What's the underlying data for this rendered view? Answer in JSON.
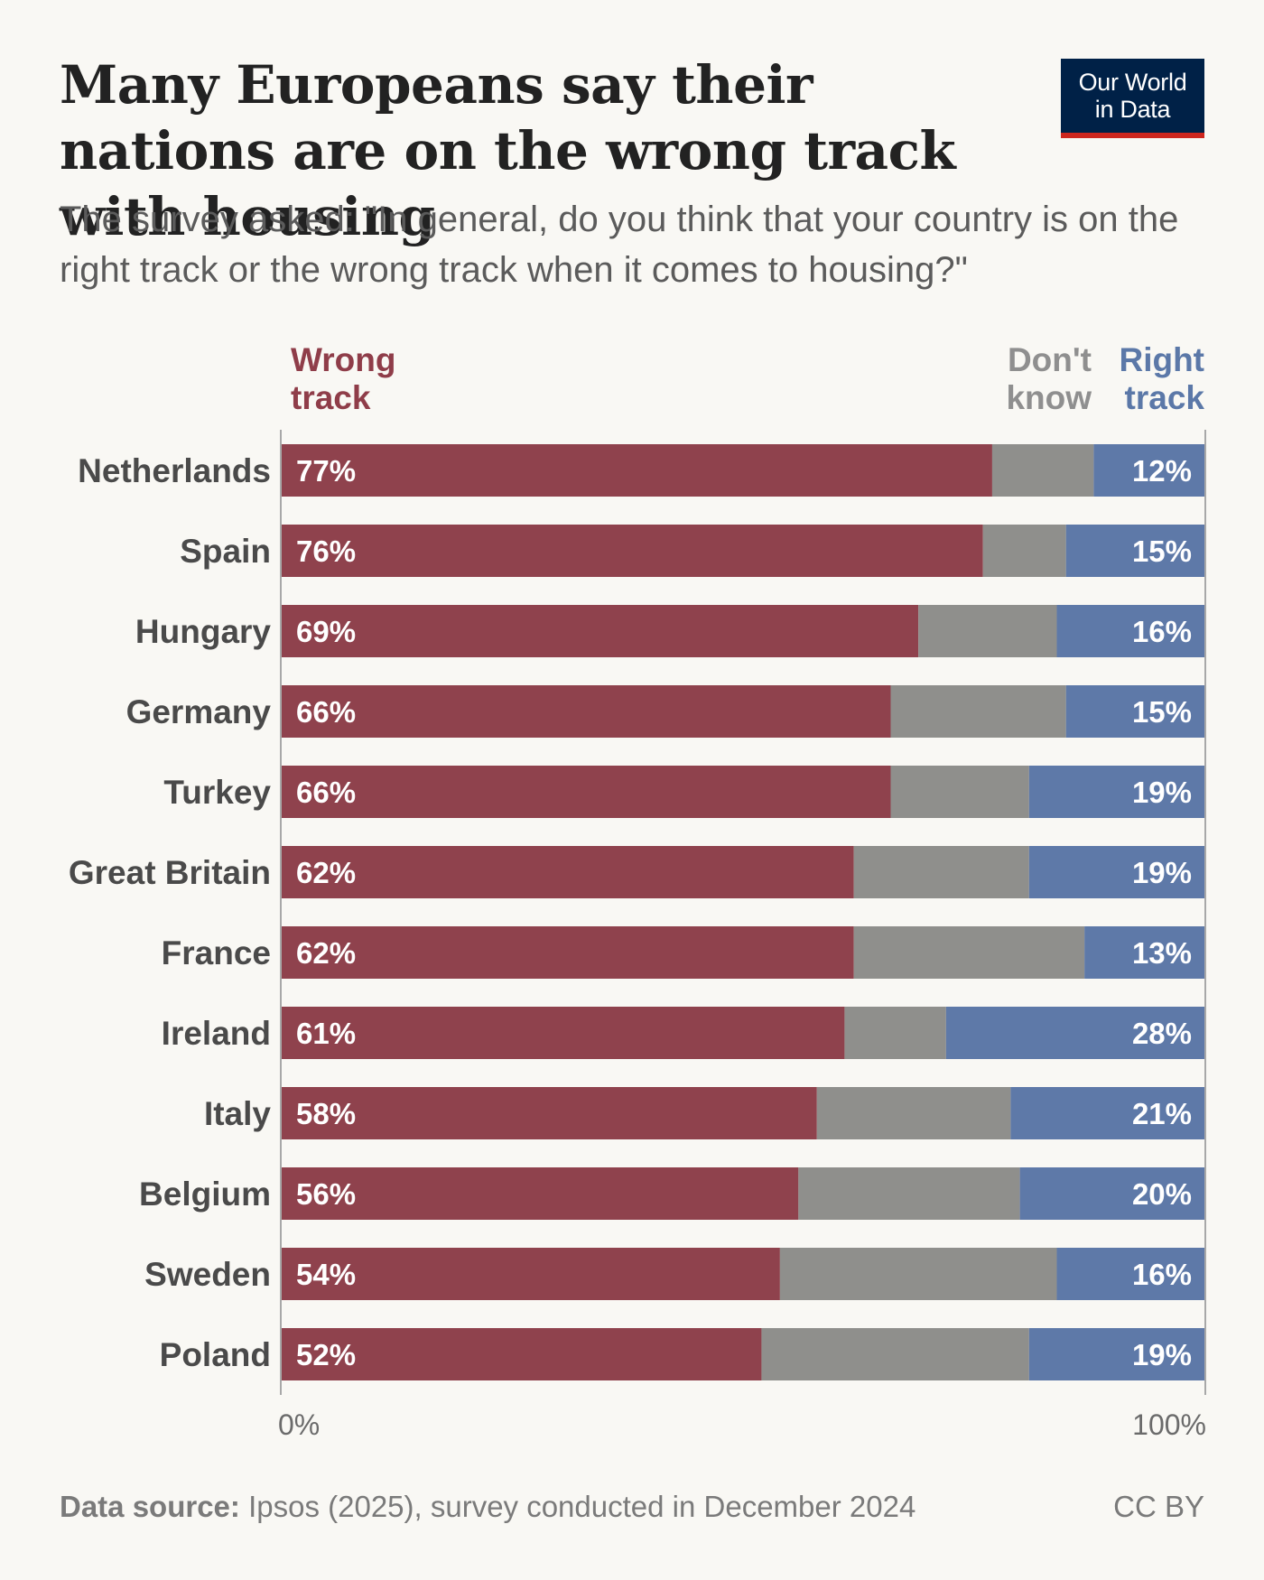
{
  "header": {
    "title": "Many Europeans say their nations are on the wrong track with housing",
    "subtitle": "The survey asked: \"In general, do you think that your country is on the right track or the wrong track when it comes to housing?\"",
    "logo_line1": "Our World",
    "logo_line2": "in Data"
  },
  "legend": {
    "wrong_line1": "Wrong",
    "wrong_line2": "track",
    "dontknow_line1": "Don't",
    "dontknow_line2": "know",
    "right_line1": "Right",
    "right_line2": "track"
  },
  "footer": {
    "source_label": "Data source:",
    "source_text": " Ipsos (2025), survey conducted in December 2024",
    "license": "CC BY"
  },
  "colors": {
    "wrong": "#8f424d",
    "dontknow": "#8f8f8c",
    "right": "#5e79a8",
    "background": "#f9f8f4"
  },
  "chart_data": {
    "type": "bar",
    "orientation": "horizontal",
    "stacked": true,
    "title": "Many Europeans say their nations are on the wrong track with housing",
    "categories": [
      "Netherlands",
      "Spain",
      "Hungary",
      "Germany",
      "Turkey",
      "Great Britain",
      "France",
      "Ireland",
      "Italy",
      "Belgium",
      "Sweden",
      "Poland"
    ],
    "series": [
      {
        "name": "Wrong track",
        "values": [
          77,
          76,
          69,
          66,
          66,
          62,
          62,
          61,
          58,
          56,
          54,
          52
        ]
      },
      {
        "name": "Don't know",
        "values": [
          11,
          9,
          15,
          19,
          15,
          19,
          25,
          11,
          21,
          24,
          30,
          29
        ]
      },
      {
        "name": "Right track",
        "values": [
          12,
          15,
          16,
          15,
          19,
          19,
          13,
          28,
          21,
          20,
          16,
          19
        ]
      }
    ],
    "xlim": [
      0,
      100
    ],
    "x_ticks": [
      "0%",
      "100%"
    ],
    "value_suffix": "%",
    "legend_placement": "top"
  }
}
